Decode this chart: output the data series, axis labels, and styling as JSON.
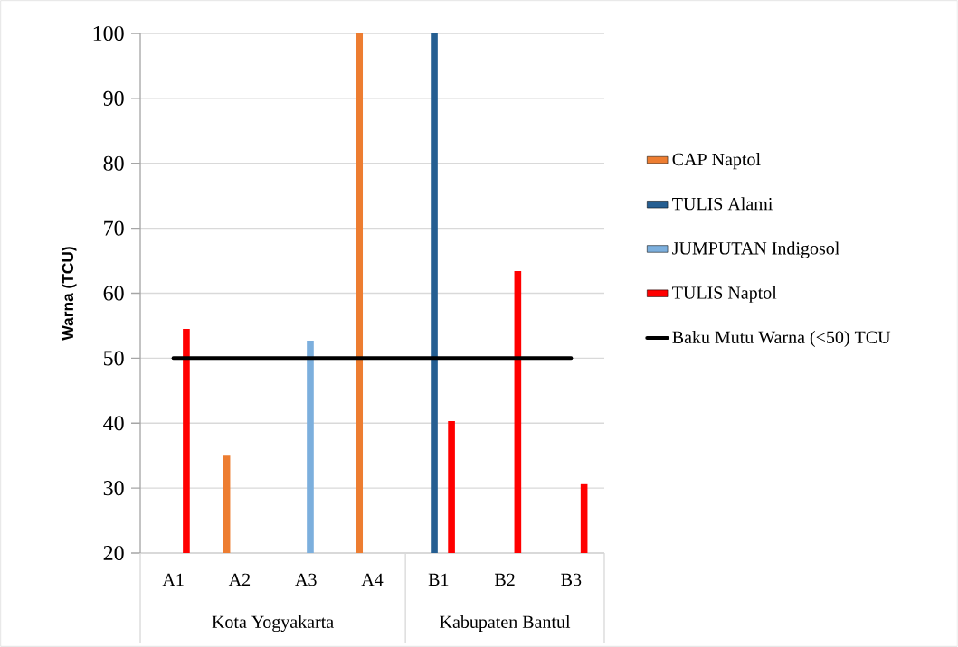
{
  "chart_data": {
    "type": "bar",
    "ylabel": "Warna (TCU)",
    "categories": [
      "A1",
      "A2",
      "A3",
      "A4",
      "B1",
      "B2",
      "B3"
    ],
    "series": [
      {
        "name": "CAP Naptol",
        "color": "#ed7d31",
        "values": [
          null,
          35.0,
          null,
          100,
          null,
          null,
          null
        ]
      },
      {
        "name": "TULIS Alami",
        "color": "#255e91",
        "values": [
          null,
          null,
          null,
          null,
          100,
          null,
          null
        ]
      },
      {
        "name": "JUMPUTAN Indigosol",
        "color": "#7cafdd",
        "values": [
          null,
          null,
          52.7,
          null,
          null,
          null,
          null
        ]
      },
      {
        "name": "TULIS Naptol",
        "color": "#ff0000",
        "values": [
          54.5,
          null,
          null,
          null,
          40.3,
          63.4,
          30.6
        ]
      },
      {
        "name": "Baku Mutu Warna  (<50) TCU",
        "type": "line",
        "color": "#000000",
        "values": [
          50,
          50,
          50,
          50,
          50,
          50,
          50
        ]
      }
    ],
    "annotations": [
      "Kota Yogyakarta",
      "Kabupaten Bantul"
    ],
    "ylim": [
      20,
      100
    ],
    "yticks": [
      20,
      30,
      40,
      50,
      60,
      70,
      80,
      90,
      100
    ],
    "grid": "y",
    "legend": "right"
  }
}
